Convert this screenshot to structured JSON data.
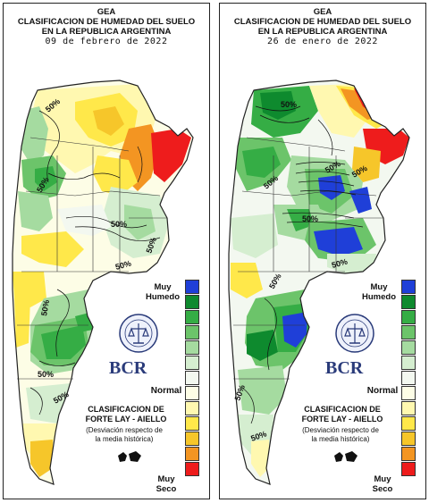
{
  "panels": [
    {
      "agency": "GEA",
      "title_line1": "CLASIFICACION DE HUMEDAD DEL SUELO",
      "title_line2": "EN LA REPUBLICA ARGENTINA",
      "date": "09 de febrero de 2022",
      "contour_labels": [
        "50%",
        "50%",
        "50%",
        "50%",
        "50%",
        "50%",
        "50%",
        "50%"
      ]
    },
    {
      "agency": "GEA",
      "title_line1": "CLASIFICACION DE HUMEDAD DEL SUELO",
      "title_line2": "EN LA REPUBLICA ARGENTINA",
      "date": "26 de enero de 2022",
      "contour_labels": [
        "50%",
        "50%",
        "50%",
        "50%",
        "50%",
        "50%",
        "50%",
        "50%",
        "50%"
      ]
    }
  ],
  "legend": {
    "top_label": "Muy Humedo",
    "mid_label": "Normal",
    "bottom_label": "Muy Seco",
    "classes": [
      "#1f3fd8",
      "#0e8a2e",
      "#35ad45",
      "#6cc46a",
      "#a5dba0",
      "#d5eed0",
      "#f3f8f0",
      "#fdfde6",
      "#fff8b0",
      "#ffe84a",
      "#f6c62a",
      "#f39522",
      "#ee1c1c"
    ]
  },
  "branding": {
    "logo_text": "BCR",
    "classification_line1": "CLASIFICACION DE",
    "classification_line2": "FORTE LAY - AIELLO",
    "note_line1": "(Desviación respecto de",
    "note_line2": "la media histórica)"
  },
  "icons": [
    "bcr-seal-icon",
    "malvinas-islands-icon"
  ]
}
